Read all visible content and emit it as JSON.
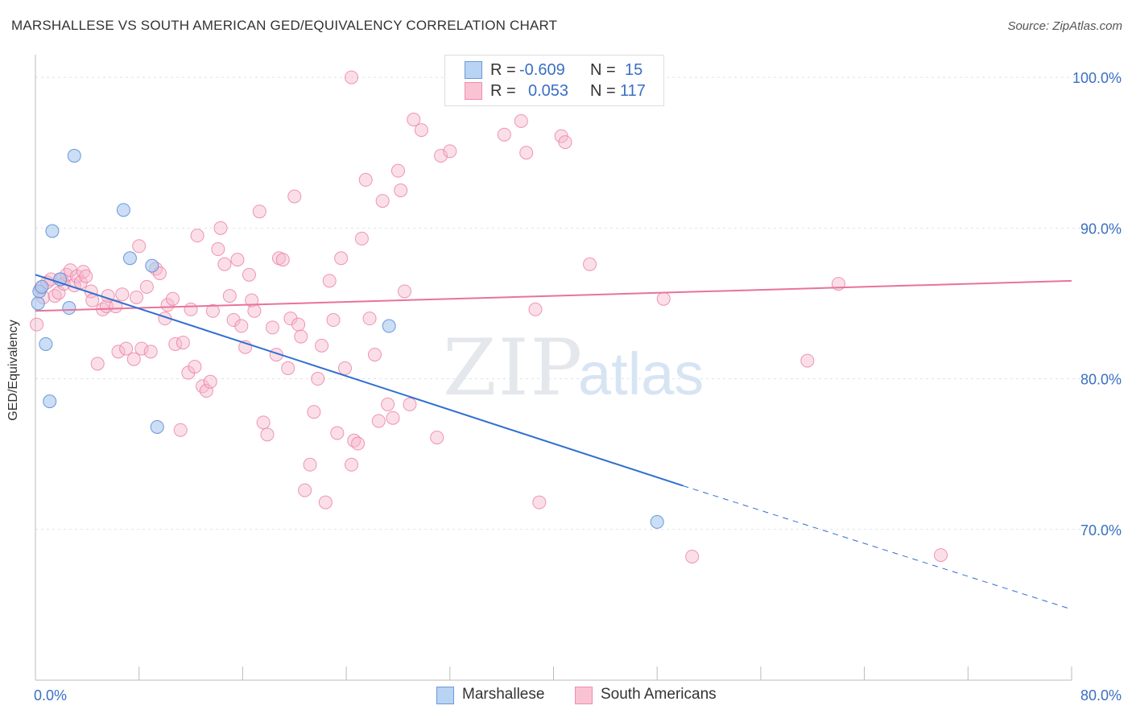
{
  "title": "MARSHALLESE VS SOUTH AMERICAN GED/EQUIVALENCY CORRELATION CHART",
  "source": "Source: ZipAtlas.com",
  "watermark": {
    "zip": "ZIP",
    "atlas": "atlas"
  },
  "legend": {
    "rows": [
      {
        "r_label": "R =",
        "r_value": "-0.609",
        "n_label": "N =",
        "n_value": "15"
      },
      {
        "r_label": "R =",
        "r_value": "0.053",
        "n_label": "N =",
        "n_value": "117"
      }
    ]
  },
  "bottom_legend": {
    "series1": "Marshallese",
    "series2": "South Americans"
  },
  "colors": {
    "marshallese_fill": "#a8c8ef",
    "marshallese_stroke": "#5b8fd6",
    "marshallese_line": "#2f6fd0",
    "south_fill": "#f7b8cc",
    "south_stroke": "#ec84a6",
    "south_line": "#e8739a",
    "value_text": "#3a6fc4",
    "grid": "#dde2ea"
  },
  "chart_data": {
    "type": "scatter",
    "xlabel": "",
    "ylabel": "GED/Equivalency",
    "xlim": [
      0,
      80
    ],
    "ylim": [
      60,
      101.5
    ],
    "x_tick_labels": [
      {
        "value": 0,
        "label": "0.0%"
      },
      {
        "value": 80,
        "label": "80.0%"
      }
    ],
    "y_tick_labels": [
      {
        "value": 100,
        "label": "100.0%"
      },
      {
        "value": 90,
        "label": "90.0%"
      },
      {
        "value": 80,
        "label": "80.0%"
      },
      {
        "value": 70,
        "label": "70.0%"
      }
    ],
    "grid": true,
    "legend_position": "top-center",
    "series": [
      {
        "name": "Marshallese",
        "r": -0.609,
        "n": 15,
        "trend": {
          "x0": 0,
          "y0": 86.9,
          "x1": 50,
          "y1": 72.9,
          "dashed_to_x": 80,
          "dashed_to_y": 64.7
        },
        "points": [
          [
            0.2,
            85.0
          ],
          [
            0.3,
            85.8
          ],
          [
            0.5,
            86.1
          ],
          [
            0.8,
            82.3
          ],
          [
            1.1,
            78.5
          ],
          [
            1.3,
            89.8
          ],
          [
            1.9,
            86.6
          ],
          [
            2.6,
            84.7
          ],
          [
            3.0,
            94.8
          ],
          [
            6.8,
            91.2
          ],
          [
            7.3,
            88.0
          ],
          [
            9.0,
            87.5
          ],
          [
            9.4,
            76.8
          ],
          [
            27.3,
            83.5
          ],
          [
            48.0,
            70.5
          ]
        ]
      },
      {
        "name": "South Americans",
        "r": 0.053,
        "n": 117,
        "trend": {
          "x0": 0,
          "y0": 84.5,
          "x1": 80,
          "y1": 86.5
        },
        "points": [
          [
            0.1,
            83.6
          ],
          [
            0.4,
            86.0
          ],
          [
            0.6,
            85.4
          ],
          [
            0.9,
            86.4
          ],
          [
            1.2,
            86.6
          ],
          [
            1.5,
            85.5
          ],
          [
            1.8,
            85.7
          ],
          [
            2.0,
            86.6
          ],
          [
            2.2,
            86.3
          ],
          [
            2.4,
            86.9
          ],
          [
            2.7,
            87.2
          ],
          [
            3.0,
            86.2
          ],
          [
            3.2,
            86.8
          ],
          [
            3.5,
            86.4
          ],
          [
            3.7,
            87.1
          ],
          [
            3.9,
            86.8
          ],
          [
            4.3,
            85.8
          ],
          [
            4.4,
            85.2
          ],
          [
            4.8,
            81.0
          ],
          [
            5.2,
            84.6
          ],
          [
            5.5,
            84.8
          ],
          [
            5.6,
            85.5
          ],
          [
            6.2,
            84.8
          ],
          [
            6.4,
            81.8
          ],
          [
            6.7,
            85.6
          ],
          [
            7.0,
            82.0
          ],
          [
            7.6,
            81.3
          ],
          [
            7.8,
            85.4
          ],
          [
            8.0,
            88.8
          ],
          [
            8.2,
            82.0
          ],
          [
            8.6,
            86.1
          ],
          [
            8.9,
            81.8
          ],
          [
            9.3,
            87.3
          ],
          [
            9.6,
            87.0
          ],
          [
            10.0,
            84.0
          ],
          [
            10.2,
            84.9
          ],
          [
            10.6,
            85.3
          ],
          [
            10.8,
            82.3
          ],
          [
            11.2,
            76.6
          ],
          [
            11.4,
            82.4
          ],
          [
            11.8,
            80.4
          ],
          [
            12.0,
            84.6
          ],
          [
            12.3,
            80.8
          ],
          [
            12.5,
            89.5
          ],
          [
            12.9,
            79.5
          ],
          [
            13.2,
            79.2
          ],
          [
            13.5,
            79.8
          ],
          [
            13.7,
            84.5
          ],
          [
            14.1,
            88.6
          ],
          [
            14.3,
            90.0
          ],
          [
            14.6,
            87.6
          ],
          [
            15.0,
            85.5
          ],
          [
            15.3,
            83.9
          ],
          [
            15.6,
            87.9
          ],
          [
            15.9,
            83.5
          ],
          [
            16.2,
            82.1
          ],
          [
            16.5,
            86.9
          ],
          [
            16.7,
            85.2
          ],
          [
            16.9,
            84.5
          ],
          [
            17.3,
            91.1
          ],
          [
            17.6,
            77.1
          ],
          [
            17.9,
            76.3
          ],
          [
            18.3,
            83.4
          ],
          [
            18.6,
            81.6
          ],
          [
            18.8,
            88.0
          ],
          [
            19.1,
            87.9
          ],
          [
            19.5,
            80.7
          ],
          [
            19.7,
            84.0
          ],
          [
            20.0,
            92.1
          ],
          [
            20.3,
            83.6
          ],
          [
            20.5,
            82.8
          ],
          [
            20.8,
            72.6
          ],
          [
            21.2,
            74.3
          ],
          [
            21.5,
            77.8
          ],
          [
            21.8,
            80.0
          ],
          [
            22.1,
            82.2
          ],
          [
            22.4,
            71.8
          ],
          [
            22.7,
            86.5
          ],
          [
            23.0,
            83.9
          ],
          [
            23.3,
            76.4
          ],
          [
            23.6,
            88.0
          ],
          [
            23.9,
            80.7
          ],
          [
            24.4,
            74.3
          ],
          [
            24.6,
            75.9
          ],
          [
            24.9,
            75.7
          ],
          [
            25.2,
            89.3
          ],
          [
            25.5,
            93.2
          ],
          [
            25.8,
            84.0
          ],
          [
            26.2,
            81.6
          ],
          [
            26.5,
            77.2
          ],
          [
            26.8,
            91.8
          ],
          [
            27.2,
            78.3
          ],
          [
            27.6,
            77.4
          ],
          [
            28.0,
            93.8
          ],
          [
            28.2,
            92.5
          ],
          [
            28.5,
            85.8
          ],
          [
            28.9,
            78.3
          ],
          [
            29.2,
            97.2
          ],
          [
            29.8,
            96.5
          ],
          [
            31.0,
            76.1
          ],
          [
            31.3,
            94.8
          ],
          [
            32.0,
            95.1
          ],
          [
            24.4,
            100.0
          ],
          [
            36.2,
            96.2
          ],
          [
            36.8,
            100.1
          ],
          [
            37.5,
            97.1
          ],
          [
            37.9,
            95.0
          ],
          [
            38.6,
            84.6
          ],
          [
            38.9,
            71.8
          ],
          [
            40.6,
            96.1
          ],
          [
            40.9,
            95.7
          ],
          [
            42.8,
            87.6
          ],
          [
            48.5,
            85.3
          ],
          [
            50.7,
            68.2
          ],
          [
            59.6,
            81.2
          ],
          [
            62.0,
            86.3
          ],
          [
            69.9,
            68.3
          ]
        ]
      }
    ]
  }
}
